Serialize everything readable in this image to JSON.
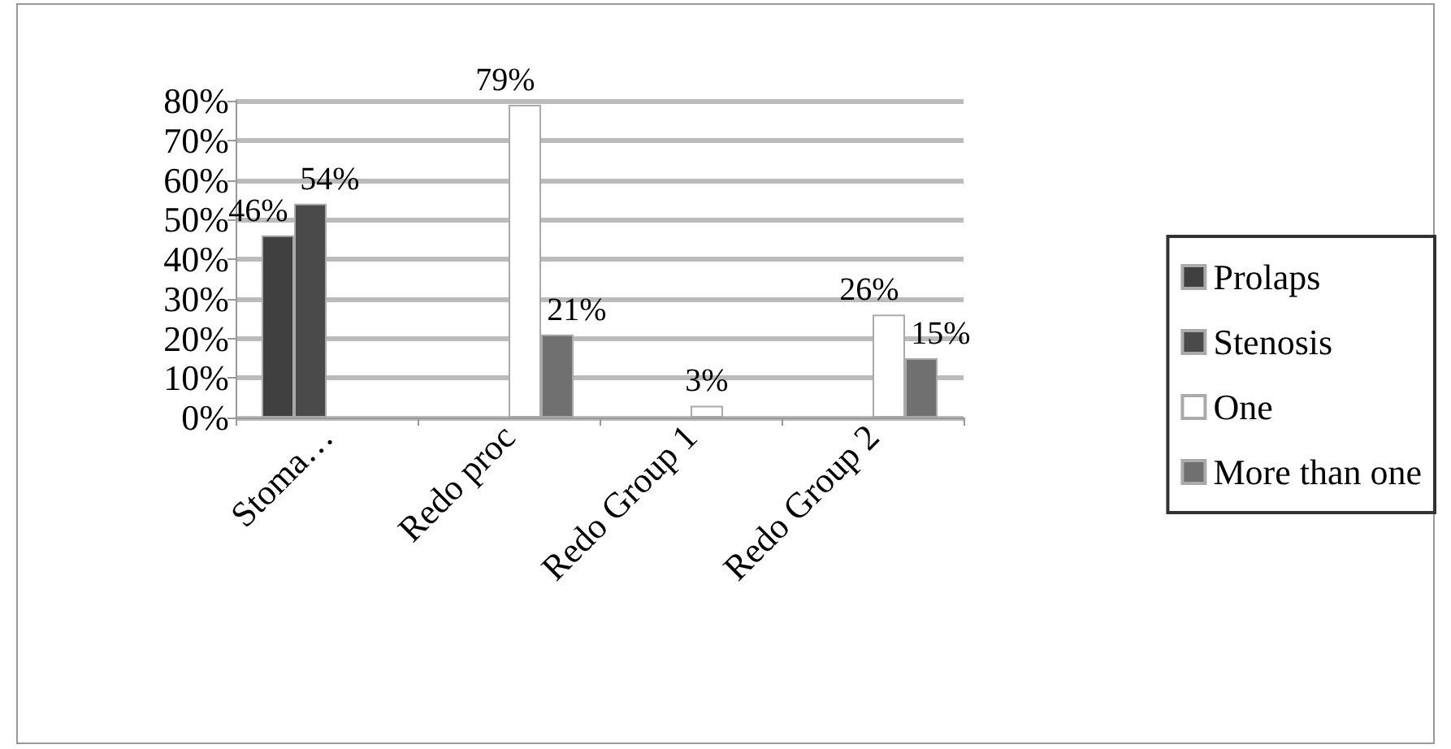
{
  "chart_data": {
    "type": "bar",
    "categories": [
      "Stoma…",
      "Redo proc",
      "Redo Group 1",
      "Redo Group 2"
    ],
    "series": [
      {
        "name": "Prolaps",
        "color": "#404040",
        "values": [
          46,
          null,
          null,
          null
        ],
        "value_labels": [
          "46%",
          null,
          null,
          null
        ]
      },
      {
        "name": "Stenosis",
        "color": "#4a4a4a",
        "values": [
          54,
          null,
          null,
          null
        ],
        "value_labels": [
          "54%",
          null,
          null,
          null
        ]
      },
      {
        "name": "One",
        "color": "#ffffff",
        "values": [
          null,
          79,
          3,
          26
        ],
        "value_labels": [
          null,
          "79%",
          "3%",
          "26%"
        ]
      },
      {
        "name": "More than one",
        "color": "#707070",
        "values": [
          null,
          21,
          null,
          15
        ],
        "value_labels": [
          null,
          "21%",
          null,
          "15%"
        ]
      }
    ],
    "ylim": [
      0,
      80
    ],
    "yticks": [
      {
        "value": 0,
        "label": "0%"
      },
      {
        "value": 10,
        "label": "10%"
      },
      {
        "value": 20,
        "label": "20%"
      },
      {
        "value": 30,
        "label": "30%"
      },
      {
        "value": 40,
        "label": "40%"
      },
      {
        "value": 50,
        "label": "50%"
      },
      {
        "value": 60,
        "label": "60%"
      },
      {
        "value": 70,
        "label": "70%"
      },
      {
        "value": 80,
        "label": "80%"
      }
    ],
    "grid": "y",
    "legend": "right"
  }
}
